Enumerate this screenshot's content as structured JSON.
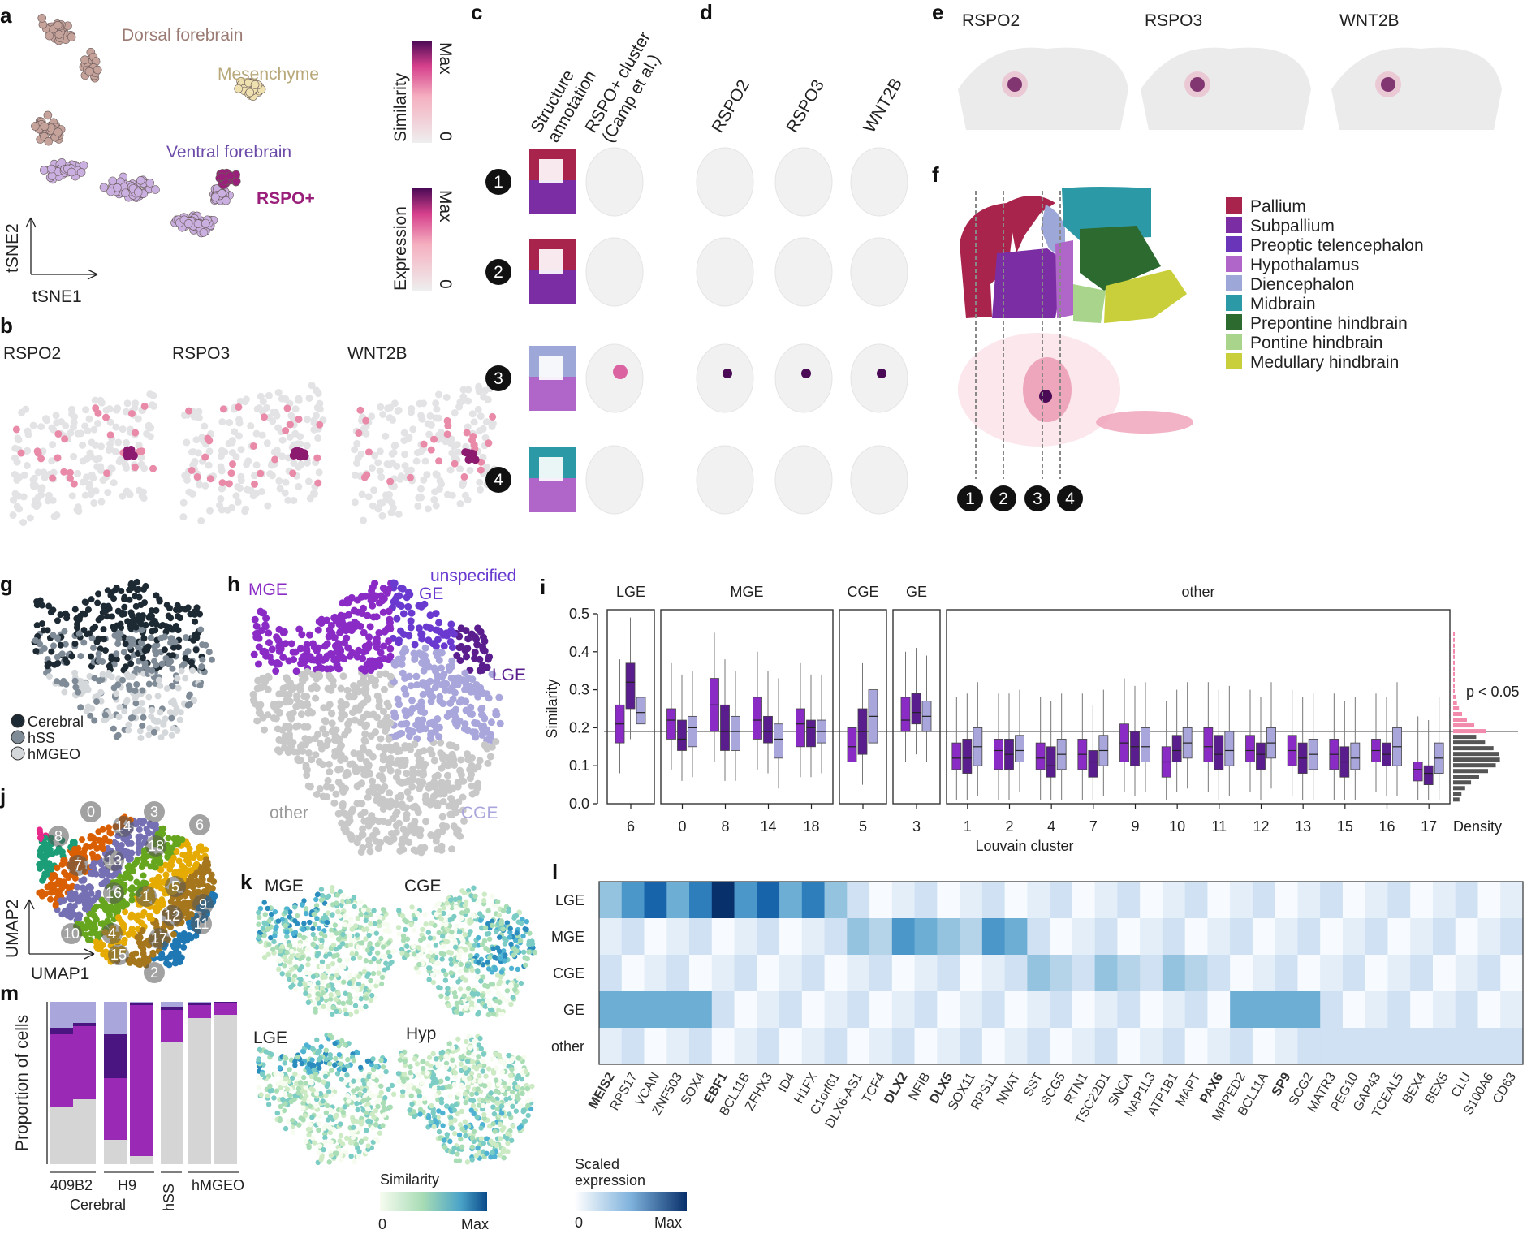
{
  "colors": {
    "dorsal": "#c5a39b",
    "mesench": "#efe0b0",
    "ventral": "#c9b0e0",
    "rspo": "#9a1f7a",
    "pallium": "#a8244c",
    "subpallium": "#7b2ea3",
    "preoptic": "#6a35b8",
    "hypothalamus": "#b065c8",
    "diencephalon": "#9ea8d8",
    "midbrain": "#2b9aa6",
    "prepontine": "#2d6a2f",
    "pontine": "#a8d48c",
    "medullary": "#c8cf3a",
    "mge": "#8a2bc6",
    "lge": "#5a1d8e",
    "cge": "#a9a6dc",
    "ge": "#6a3ad0",
    "other": "#c8c8c8",
    "cerebral": "#1e2a33",
    "hss": "#7f8b96",
    "hmgeo": "#d5d8db"
  },
  "labels": {
    "a": "a",
    "b": "b",
    "c": "c",
    "d": "d",
    "e": "e",
    "f": "f",
    "g": "g",
    "h": "h",
    "i": "i",
    "j": "j",
    "k": "k",
    "l": "l",
    "m": "m"
  },
  "panel_a": {
    "dorsal": "Dorsal forebrain",
    "mesench": "Mesenchyme",
    "ventral": "Ventral forebrain",
    "rspo": "RSPO+",
    "axis_y": "tSNE2",
    "axis_x": "tSNE1"
  },
  "legend_sim": {
    "title": "Similarity",
    "max": "Max",
    "min": "0"
  },
  "legend_expr": {
    "title": "Expression",
    "max": "Max",
    "min": "0"
  },
  "panel_b": {
    "genes": [
      "RSPO2",
      "RSPO3",
      "WNT2B"
    ]
  },
  "panel_c": {
    "col1": [
      "Structure",
      "annotation"
    ],
    "col2": [
      "RSPO+ cluster",
      "(Camp et al.)"
    ],
    "rows": [
      "1",
      "2",
      "3",
      "4"
    ]
  },
  "panel_d": {
    "genes": [
      "RSPO2",
      "RSPO3",
      "WNT2B"
    ]
  },
  "panel_e": {
    "genes": [
      "RSPO2",
      "RSPO3",
      "WNT2B"
    ]
  },
  "panel_f": {
    "legend": [
      "Pallium",
      "Subpallium",
      "Preoptic telencephalon",
      "Hypothalamus",
      "Diencephalon",
      "Midbrain",
      "Prepontine hindbrain",
      "Pontine hindbrain",
      "Medullary hindbrain"
    ],
    "markers": [
      "1",
      "2",
      "3",
      "4"
    ]
  },
  "panel_g": {
    "legend": [
      "Cerebral",
      "hSS",
      "hMGEO"
    ]
  },
  "panel_h": {
    "mge": "MGE",
    "unspecified": "unspecified",
    "ge": "GE",
    "lge": "LGE",
    "cge": "CGE",
    "other": "other"
  },
  "panel_j": {
    "axis_y": "UMAP2",
    "axis_x": "UMAP1",
    "clusters": [
      "0",
      "3",
      "6",
      "8",
      "14",
      "18",
      "7",
      "13",
      "5",
      "16",
      "1",
      "9",
      "12",
      "11",
      "10",
      "4",
      "17",
      "15",
      "2"
    ]
  },
  "panel_k": {
    "titles": [
      "MGE",
      "CGE",
      "LGE",
      "Hyp"
    ],
    "legend_title": "Similarity",
    "min": "0",
    "max": "Max"
  },
  "panel_m": {
    "ylabel": "Proportion of cells",
    "groups": [
      "409B2",
      "H9",
      "hSS",
      "hMGEO"
    ],
    "sub": "Cerebral"
  },
  "panel_l": {
    "legend_title": [
      "Scaled",
      "expression"
    ],
    "min": "0",
    "max": "Max",
    "rows": [
      "LGE",
      "MGE",
      "CGE",
      "GE",
      "other"
    ],
    "genes": [
      "MEIS2",
      "RPS17",
      "VCAN",
      "ZNF503",
      "SOX4",
      "EBF1",
      "BCL11B",
      "ZFHX3",
      "ID4",
      "H1FX",
      "C1orf61",
      "DLX6-AS1",
      "TCF4",
      "DLX2",
      "NFIB",
      "DLX5",
      "SOX11",
      "RPS11",
      "NNAT",
      "SST",
      "SCG5",
      "RTN1",
      "TSC22D1",
      "SNCA",
      "NAP1L3",
      "ATP1B1",
      "MAPT",
      "PAX6",
      "MPPED2",
      "BCL11A",
      "SP9",
      "SCG2",
      "MATR3",
      "PEG10",
      "GAP43",
      "TCEAL5",
      "BEX4",
      "BEX5",
      "CLU",
      "S100A6",
      "CD63"
    ],
    "bold": [
      "MEIS2",
      "EBF1",
      "DLX2",
      "DLX5",
      "PAX6",
      "SP9"
    ]
  },
  "chart_data": {
    "type": "box",
    "title": "",
    "xlabel": "Louvain cluster",
    "ylabel": "Similarity",
    "ylim": [
      0,
      0.5
    ],
    "yticks": [
      "0.0",
      "0.1",
      "0.2",
      "0.3",
      "0.4",
      "0.5"
    ],
    "threshold": 0.19,
    "threshold_label": "p < 0.05",
    "density_label": "Density",
    "groups": [
      {
        "name": "LGE",
        "clusters": [
          "6"
        ]
      },
      {
        "name": "MGE",
        "clusters": [
          "0",
          "8",
          "14",
          "18"
        ]
      },
      {
        "name": "CGE",
        "clusters": [
          "5"
        ]
      },
      {
        "name": "GE",
        "clusters": [
          "3"
        ]
      },
      {
        "name": "other",
        "clusters": [
          "1",
          "2",
          "4",
          "7",
          "9",
          "10",
          "11",
          "12",
          "13",
          "15",
          "16",
          "17"
        ]
      }
    ],
    "series_colors": [
      "#8a2bc6",
      "#5a1d8e",
      "#a9a6dc"
    ],
    "boxes": {
      "6": [
        [
          0.16,
          0.21,
          0.26
        ],
        [
          0.25,
          0.32,
          0.37
        ],
        [
          0.21,
          0.24,
          0.28
        ]
      ],
      "0": [
        [
          0.17,
          0.22,
          0.25
        ],
        [
          0.14,
          0.17,
          0.22
        ],
        [
          0.15,
          0.2,
          0.23
        ]
      ],
      "8": [
        [
          0.19,
          0.26,
          0.33
        ],
        [
          0.14,
          0.19,
          0.26
        ],
        [
          0.14,
          0.19,
          0.23
        ]
      ],
      "14": [
        [
          0.17,
          0.22,
          0.28
        ],
        [
          0.16,
          0.19,
          0.23
        ],
        [
          0.12,
          0.17,
          0.21
        ]
      ],
      "18": [
        [
          0.15,
          0.21,
          0.25
        ],
        [
          0.15,
          0.2,
          0.22
        ],
        [
          0.16,
          0.19,
          0.22
        ]
      ],
      "5": [
        [
          0.11,
          0.15,
          0.2
        ],
        [
          0.13,
          0.19,
          0.25
        ],
        [
          0.16,
          0.23,
          0.3
        ]
      ],
      "3": [
        [
          0.19,
          0.22,
          0.28
        ],
        [
          0.21,
          0.24,
          0.29
        ],
        [
          0.19,
          0.23,
          0.27
        ]
      ],
      "1": [
        [
          0.09,
          0.12,
          0.16
        ],
        [
          0.08,
          0.12,
          0.17
        ],
        [
          0.1,
          0.15,
          0.2
        ]
      ],
      "2": [
        [
          0.09,
          0.14,
          0.17
        ],
        [
          0.09,
          0.13,
          0.17
        ],
        [
          0.11,
          0.14,
          0.18
        ]
      ],
      "4": [
        [
          0.09,
          0.12,
          0.16
        ],
        [
          0.07,
          0.1,
          0.15
        ],
        [
          0.09,
          0.13,
          0.17
        ]
      ],
      "7": [
        [
          0.09,
          0.13,
          0.17
        ],
        [
          0.07,
          0.11,
          0.14
        ],
        [
          0.1,
          0.14,
          0.18
        ]
      ],
      "9": [
        [
          0.11,
          0.16,
          0.21
        ],
        [
          0.1,
          0.15,
          0.19
        ],
        [
          0.11,
          0.15,
          0.2
        ]
      ],
      "10": [
        [
          0.07,
          0.11,
          0.15
        ],
        [
          0.11,
          0.14,
          0.18
        ],
        [
          0.12,
          0.16,
          0.2
        ]
      ],
      "11": [
        [
          0.11,
          0.15,
          0.2
        ],
        [
          0.09,
          0.13,
          0.18
        ],
        [
          0.1,
          0.14,
          0.19
        ]
      ],
      "12": [
        [
          0.11,
          0.14,
          0.18
        ],
        [
          0.09,
          0.13,
          0.16
        ],
        [
          0.12,
          0.16,
          0.2
        ]
      ],
      "13": [
        [
          0.1,
          0.14,
          0.18
        ],
        [
          0.08,
          0.12,
          0.16
        ],
        [
          0.09,
          0.13,
          0.17
        ]
      ],
      "15": [
        [
          0.09,
          0.13,
          0.17
        ],
        [
          0.07,
          0.11,
          0.15
        ],
        [
          0.09,
          0.12,
          0.16
        ]
      ],
      "16": [
        [
          0.11,
          0.14,
          0.17
        ],
        [
          0.1,
          0.13,
          0.16
        ],
        [
          0.1,
          0.15,
          0.2
        ]
      ],
      "17": [
        [
          0.06,
          0.09,
          0.11
        ],
        [
          0.05,
          0.08,
          0.1
        ],
        [
          0.08,
          0.12,
          0.16
        ]
      ]
    }
  }
}
